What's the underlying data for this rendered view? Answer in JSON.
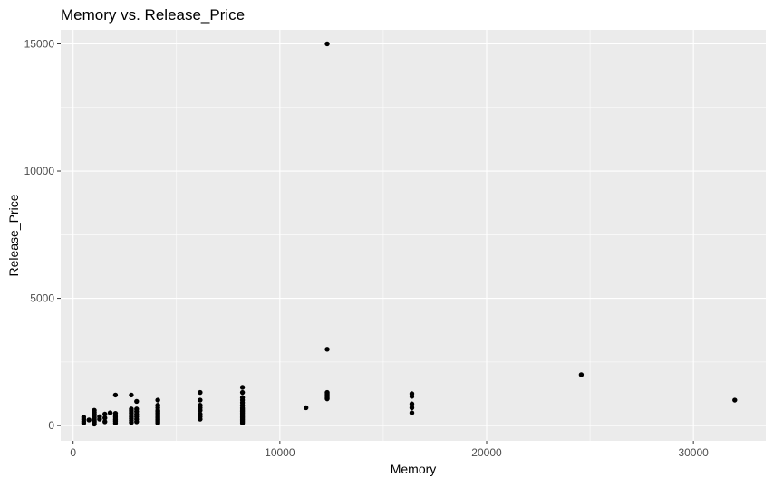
{
  "chart_data": {
    "type": "scatter",
    "title": "Memory vs. Release_Price",
    "xlabel": "Memory",
    "ylabel": "Release_Price",
    "xlim": [
      -600,
      33500
    ],
    "ylim": [
      -600,
      15550
    ],
    "xticks": [
      0,
      10000,
      20000,
      30000
    ],
    "yticks": [
      0,
      5000,
      10000,
      15000
    ],
    "xtick_labels": [
      "0",
      "10000",
      "20000",
      "30000"
    ],
    "ytick_labels": [
      "0",
      "5000",
      "10000",
      "15000"
    ],
    "grid": true,
    "panel_background": "#ebebeb",
    "grid_color": "#ffffff",
    "point_color": "#000000",
    "points": [
      {
        "x": 512,
        "y": 100
      },
      {
        "x": 512,
        "y": 170
      },
      {
        "x": 512,
        "y": 250
      },
      {
        "x": 512,
        "y": 330
      },
      {
        "x": 768,
        "y": 220
      },
      {
        "x": 1024,
        "y": 60
      },
      {
        "x": 1024,
        "y": 120
      },
      {
        "x": 1024,
        "y": 180
      },
      {
        "x": 1024,
        "y": 250
      },
      {
        "x": 1024,
        "y": 320
      },
      {
        "x": 1024,
        "y": 400
      },
      {
        "x": 1024,
        "y": 450
      },
      {
        "x": 1024,
        "y": 520
      },
      {
        "x": 1024,
        "y": 600
      },
      {
        "x": 1280,
        "y": 250
      },
      {
        "x": 1280,
        "y": 350
      },
      {
        "x": 1536,
        "y": 150
      },
      {
        "x": 1536,
        "y": 300
      },
      {
        "x": 1536,
        "y": 450
      },
      {
        "x": 1792,
        "y": 500
      },
      {
        "x": 2048,
        "y": 100
      },
      {
        "x": 2048,
        "y": 180
      },
      {
        "x": 2048,
        "y": 250
      },
      {
        "x": 2048,
        "y": 330
      },
      {
        "x": 2048,
        "y": 400
      },
      {
        "x": 2048,
        "y": 480
      },
      {
        "x": 2048,
        "y": 1200
      },
      {
        "x": 2816,
        "y": 120
      },
      {
        "x": 2816,
        "y": 200
      },
      {
        "x": 2816,
        "y": 280
      },
      {
        "x": 2816,
        "y": 350
      },
      {
        "x": 2816,
        "y": 420
      },
      {
        "x": 2816,
        "y": 500
      },
      {
        "x": 2816,
        "y": 580
      },
      {
        "x": 2816,
        "y": 650
      },
      {
        "x": 2816,
        "y": 1200
      },
      {
        "x": 3072,
        "y": 150
      },
      {
        "x": 3072,
        "y": 250
      },
      {
        "x": 3072,
        "y": 350
      },
      {
        "x": 3072,
        "y": 450
      },
      {
        "x": 3072,
        "y": 550
      },
      {
        "x": 3072,
        "y": 650
      },
      {
        "x": 3072,
        "y": 950
      },
      {
        "x": 4096,
        "y": 100
      },
      {
        "x": 4096,
        "y": 150
      },
      {
        "x": 4096,
        "y": 200
      },
      {
        "x": 4096,
        "y": 250
      },
      {
        "x": 4096,
        "y": 300
      },
      {
        "x": 4096,
        "y": 350
      },
      {
        "x": 4096,
        "y": 400
      },
      {
        "x": 4096,
        "y": 450
      },
      {
        "x": 4096,
        "y": 500
      },
      {
        "x": 4096,
        "y": 550
      },
      {
        "x": 4096,
        "y": 600
      },
      {
        "x": 4096,
        "y": 700
      },
      {
        "x": 4096,
        "y": 800
      },
      {
        "x": 4096,
        "y": 1000
      },
      {
        "x": 6144,
        "y": 250
      },
      {
        "x": 6144,
        "y": 350
      },
      {
        "x": 6144,
        "y": 450
      },
      {
        "x": 6144,
        "y": 600
      },
      {
        "x": 6144,
        "y": 700
      },
      {
        "x": 6144,
        "y": 800
      },
      {
        "x": 6144,
        "y": 1000
      },
      {
        "x": 6144,
        "y": 1300
      },
      {
        "x": 8192,
        "y": 100
      },
      {
        "x": 8192,
        "y": 150
      },
      {
        "x": 8192,
        "y": 200
      },
      {
        "x": 8192,
        "y": 250
      },
      {
        "x": 8192,
        "y": 300
      },
      {
        "x": 8192,
        "y": 350
      },
      {
        "x": 8192,
        "y": 400
      },
      {
        "x": 8192,
        "y": 450
      },
      {
        "x": 8192,
        "y": 500
      },
      {
        "x": 8192,
        "y": 550
      },
      {
        "x": 8192,
        "y": 600
      },
      {
        "x": 8192,
        "y": 650
      },
      {
        "x": 8192,
        "y": 700
      },
      {
        "x": 8192,
        "y": 800
      },
      {
        "x": 8192,
        "y": 900
      },
      {
        "x": 8192,
        "y": 1000
      },
      {
        "x": 8192,
        "y": 1100
      },
      {
        "x": 8192,
        "y": 1300
      },
      {
        "x": 8192,
        "y": 1500
      },
      {
        "x": 11264,
        "y": 700
      },
      {
        "x": 12288,
        "y": 1050
      },
      {
        "x": 12288,
        "y": 1100
      },
      {
        "x": 12288,
        "y": 1150
      },
      {
        "x": 12288,
        "y": 1200
      },
      {
        "x": 12288,
        "y": 1250
      },
      {
        "x": 12288,
        "y": 1300
      },
      {
        "x": 12288,
        "y": 3000
      },
      {
        "x": 12288,
        "y": 15000
      },
      {
        "x": 16384,
        "y": 500
      },
      {
        "x": 16384,
        "y": 700
      },
      {
        "x": 16384,
        "y": 850
      },
      {
        "x": 16384,
        "y": 1150
      },
      {
        "x": 16384,
        "y": 1250
      },
      {
        "x": 24576,
        "y": 2000
      },
      {
        "x": 32000,
        "y": 1000
      }
    ]
  }
}
